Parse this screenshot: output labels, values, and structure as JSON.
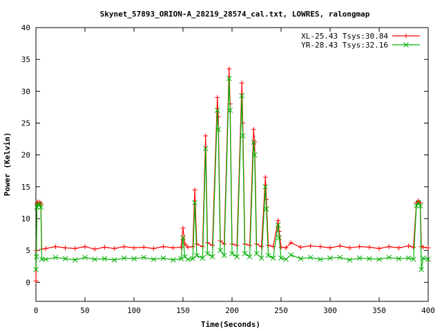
{
  "chart_data": {
    "type": "line",
    "title": "Skynet_57893_ORION-A_28219_28574_cal.txt, LOWRES, ralongmap",
    "xlabel": "Time(Seconds)",
    "ylabel": "Power (Kelvin)",
    "xlim": [
      0,
      400
    ],
    "ylim": [
      -3,
      40
    ],
    "xticks": [
      0,
      50,
      100,
      150,
      200,
      250,
      300,
      350,
      400
    ],
    "yticks": [
      0,
      5,
      10,
      15,
      20,
      25,
      30,
      35,
      40
    ],
    "grid": false,
    "legend_position": "top-right",
    "series": [
      {
        "name": "XL-25.43 Tsys:30.84",
        "color": "#ff0000",
        "marker": "+",
        "x": [
          0,
          0.5,
          1,
          2,
          4,
          5,
          6,
          10,
          20,
          30,
          40,
          50,
          60,
          70,
          80,
          90,
          100,
          110,
          120,
          130,
          140,
          148,
          150,
          152,
          155,
          160,
          162,
          164,
          170,
          173,
          175,
          180,
          185,
          186,
          188,
          192,
          197,
          198,
          200,
          205,
          210,
          211,
          213,
          218,
          222,
          223,
          225,
          230,
          234,
          235,
          237,
          242,
          247,
          248,
          250,
          255,
          260,
          270,
          280,
          290,
          300,
          310,
          320,
          330,
          340,
          350,
          360,
          370,
          380,
          385,
          388,
          390,
          392,
          393,
          395,
          400
        ],
        "values": [
          0.2,
          5.0,
          12.4,
          12.6,
          12.6,
          12.3,
          5.2,
          5.3,
          5.6,
          5.4,
          5.3,
          5.6,
          5.2,
          5.5,
          5.3,
          5.6,
          5.4,
          5.5,
          5.3,
          5.6,
          5.4,
          5.5,
          8.5,
          6.0,
          5.5,
          5.6,
          14.5,
          6.0,
          5.6,
          23.0,
          6.2,
          5.8,
          29.0,
          26.0,
          6.5,
          6.0,
          33.5,
          28.0,
          6.0,
          5.8,
          31.3,
          25.0,
          6.0,
          5.8,
          24.0,
          22.0,
          6.0,
          5.6,
          16.5,
          13.0,
          5.8,
          5.6,
          9.7,
          8.0,
          5.5,
          5.4,
          6.2,
          5.5,
          5.7,
          5.6,
          5.4,
          5.7,
          5.4,
          5.6,
          5.5,
          5.3,
          5.6,
          5.4,
          5.7,
          5.5,
          12.5,
          12.8,
          12.5,
          5.6,
          5.5,
          5.4
        ]
      },
      {
        "name": "YR-28.43 Tsys:32.16",
        "color": "#00b000",
        "marker": "x",
        "x": [
          0,
          0.5,
          1,
          2,
          4,
          5,
          6,
          10,
          20,
          30,
          40,
          50,
          60,
          70,
          80,
          90,
          100,
          110,
          120,
          130,
          140,
          148,
          150,
          152,
          155,
          160,
          162,
          164,
          170,
          173,
          175,
          180,
          185,
          186,
          188,
          192,
          197,
          198,
          200,
          205,
          210,
          211,
          213,
          218,
          222,
          223,
          225,
          230,
          234,
          235,
          237,
          242,
          247,
          248,
          250,
          255,
          260,
          270,
          280,
          290,
          300,
          310,
          320,
          330,
          340,
          350,
          360,
          370,
          380,
          385,
          388,
          390,
          392,
          393,
          395,
          400
        ],
        "values": [
          2.0,
          4.0,
          11.8,
          12.2,
          12.2,
          11.8,
          3.6,
          3.6,
          3.9,
          3.7,
          3.5,
          3.9,
          3.6,
          3.7,
          3.5,
          3.8,
          3.7,
          3.9,
          3.6,
          3.8,
          3.5,
          3.7,
          7.0,
          4.0,
          3.6,
          3.7,
          12.5,
          4.2,
          3.8,
          21.0,
          4.5,
          4.0,
          27.0,
          24.0,
          5.0,
          4.2,
          32.0,
          27.0,
          4.5,
          4.0,
          29.3,
          23.0,
          4.5,
          4.0,
          22.0,
          20.0,
          4.5,
          3.8,
          15.0,
          11.5,
          4.2,
          3.8,
          9.0,
          7.0,
          3.8,
          3.6,
          4.3,
          3.7,
          3.9,
          3.6,
          3.8,
          3.9,
          3.5,
          3.8,
          3.7,
          3.6,
          3.9,
          3.7,
          3.8,
          3.6,
          12.0,
          12.5,
          12.0,
          2.0,
          3.8,
          3.6
        ]
      }
    ]
  }
}
